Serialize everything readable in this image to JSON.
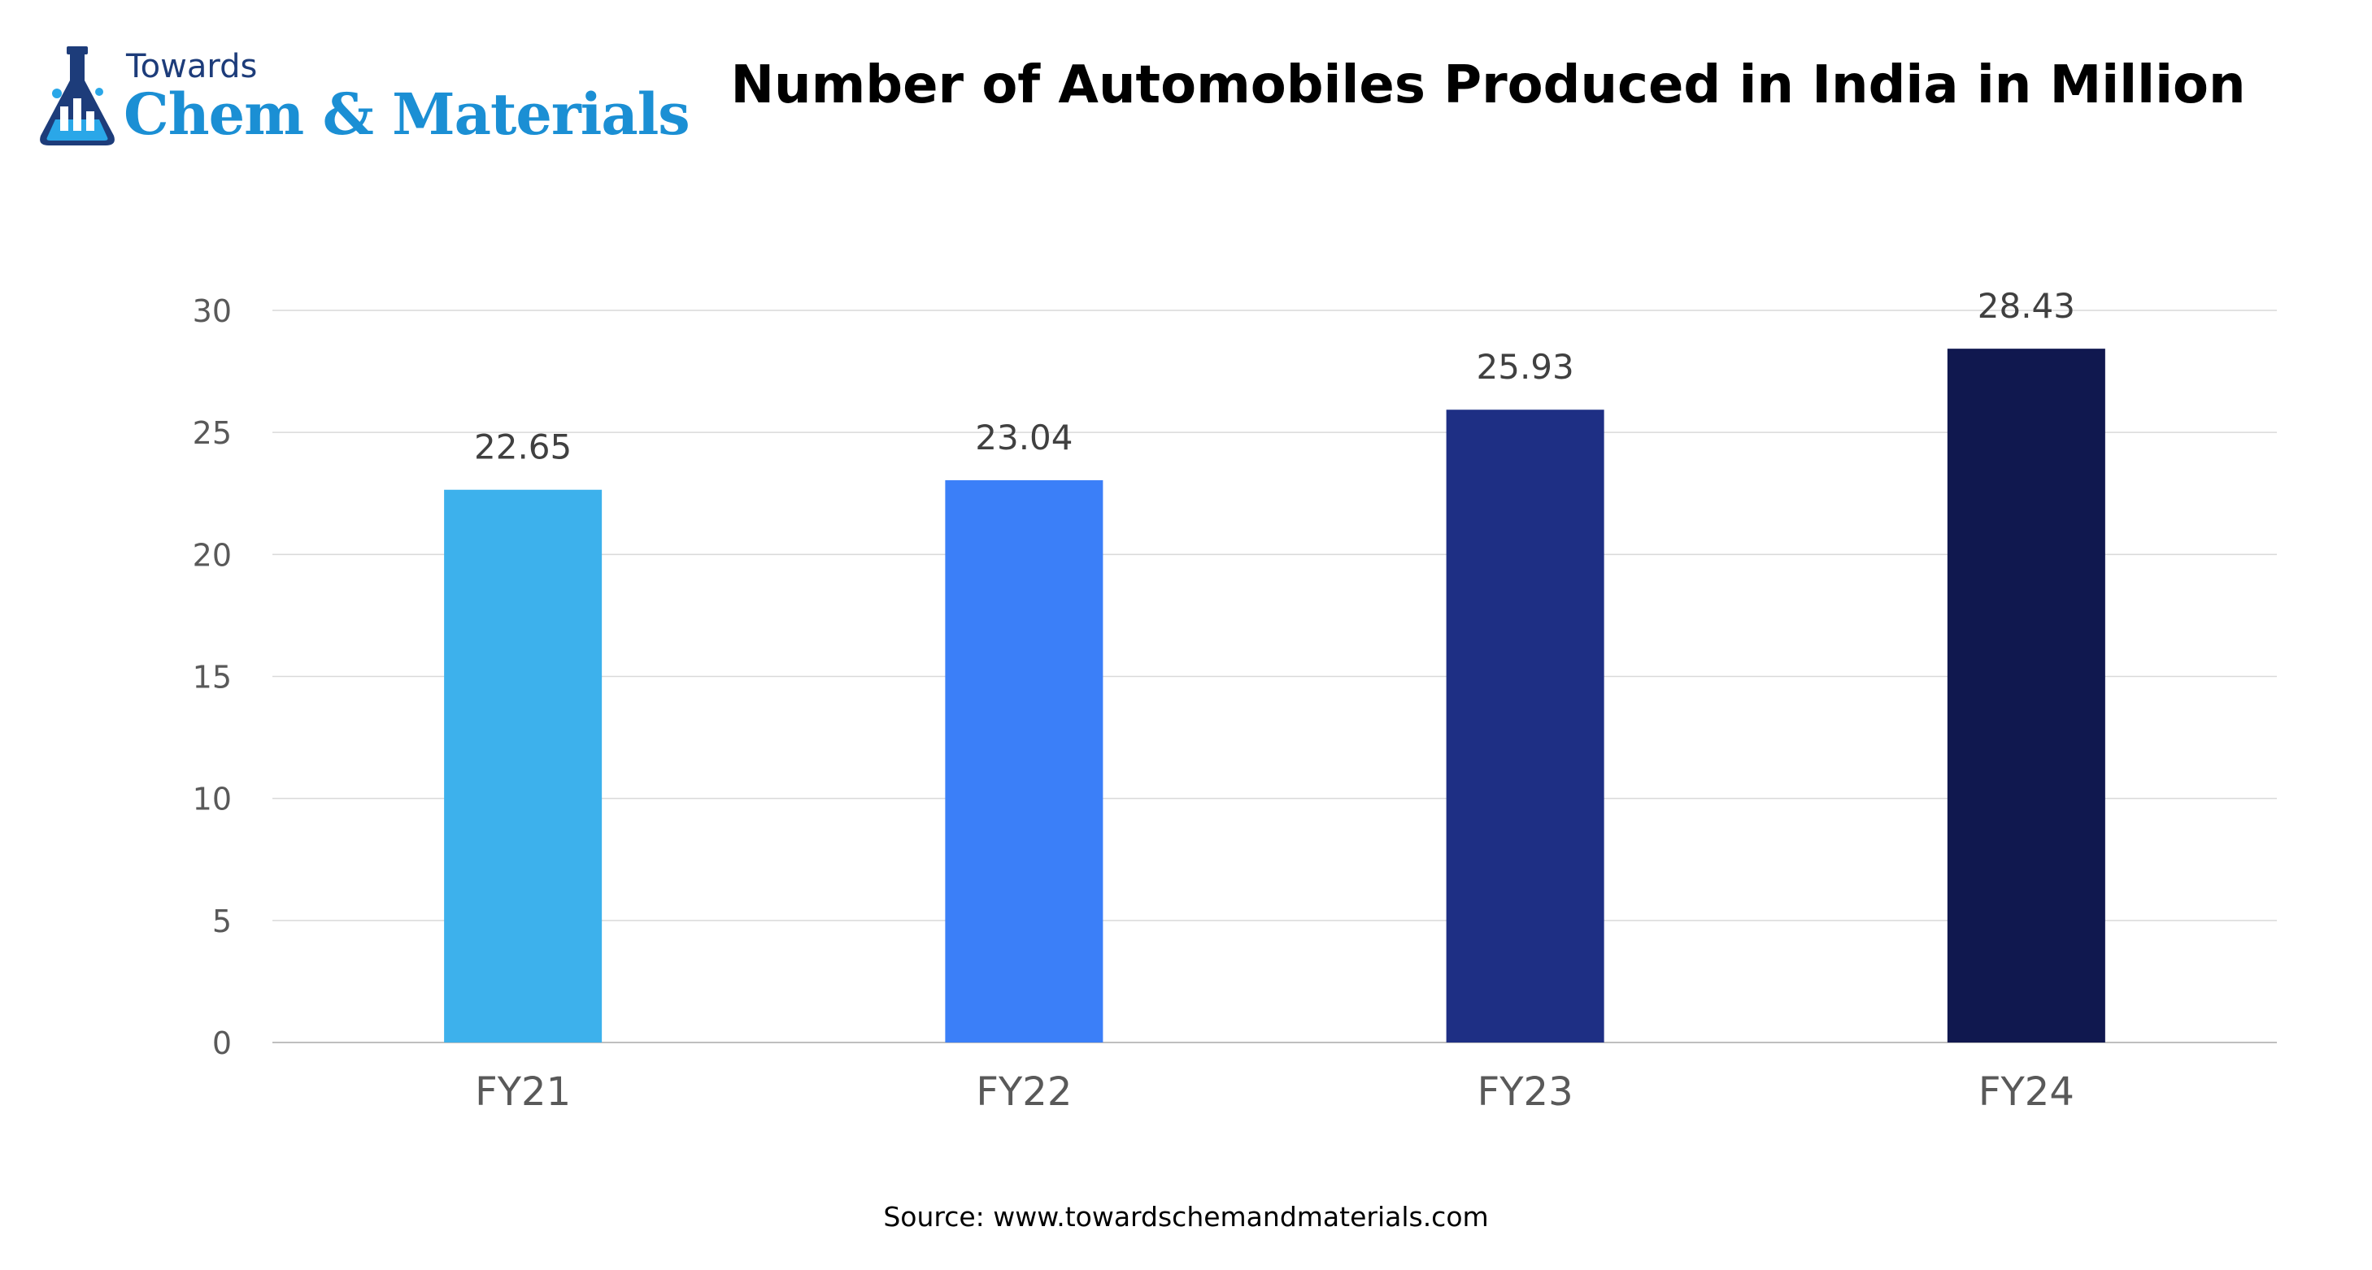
{
  "logo": {
    "towards": "Towards",
    "main": "Chem & Materials"
  },
  "source": "Source: www.towardschemandmaterials.com",
  "colors": {
    "grid": "#d9d9d9",
    "axis_text": "#595959",
    "label_text": "#404040"
  },
  "chart_data": {
    "type": "bar",
    "title": "Number of Automobiles Produced in India in Million",
    "categories": [
      "FY21",
      "FY22",
      "FY23",
      "FY24"
    ],
    "values": [
      22.65,
      23.04,
      25.93,
      28.43
    ],
    "value_labels": [
      "22.65",
      "23.04",
      "25.93",
      "28.43"
    ],
    "bar_colors": [
      "#3db1ec",
      "#3b7ff8",
      "#1e2f84",
      "#10184f"
    ],
    "xlabel": "",
    "ylabel": "",
    "ylim": [
      0,
      30
    ],
    "yticks": [
      0,
      5,
      10,
      15,
      20,
      25,
      30
    ],
    "grid": true,
    "legend": "none"
  }
}
